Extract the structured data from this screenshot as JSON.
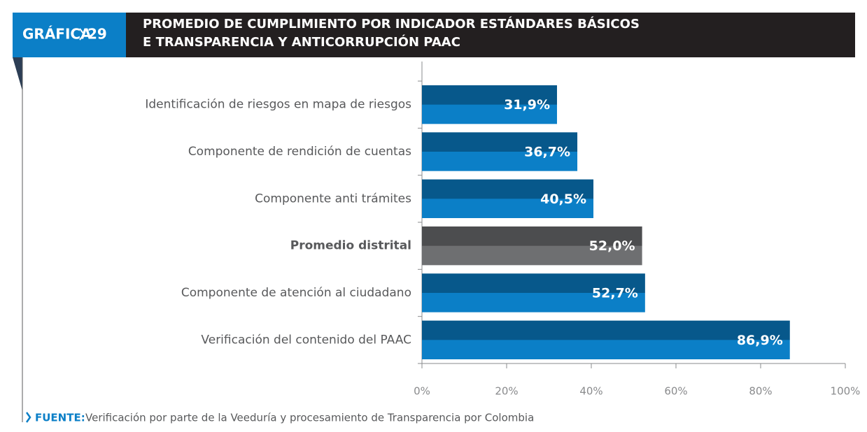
{
  "chart_data": {
    "type": "hbar",
    "tab_label": "GRÁFICA",
    "number": "29",
    "title_lines": [
      "PROMEDIO DE CUMPLIMIENTO POR INDICADOR ESTÁNDARES BÁSICOS",
      "E TRANSPARENCIA Y ANTICORRUPCIÓN PAAC"
    ],
    "categories": [
      "Identificación de riesgos en mapa de riesgos",
      "Componente de rendición de cuentas",
      "Componente anti trámites",
      "Promedio distrital",
      "Componente de atención al ciudadano",
      "Verificación del contenido del PAAC"
    ],
    "values": [
      31.9,
      36.7,
      40.5,
      52.0,
      52.7,
      86.9
    ],
    "value_labels": [
      "31,9%",
      "36,7%",
      "40,5%",
      "52,0%",
      "52,7%",
      "86,9%"
    ],
    "colors": [
      "#0b7fc7",
      "#0b7fc7",
      "#0b7fc7",
      "#6e6f71",
      "#0b7fc7",
      "#0b7fc7"
    ],
    "highlight": 3,
    "xlim": [
      0,
      100
    ],
    "xticks": [
      {
        "value": 0,
        "label": "0%"
      },
      {
        "value": 20,
        "label": "20%"
      },
      {
        "value": 40,
        "label": "40%"
      },
      {
        "value": 60,
        "label": "60%"
      },
      {
        "value": 80,
        "label": "80%"
      },
      {
        "value": 100,
        "label": "100%"
      }
    ],
    "source_label": "FUENTE:",
    "source": "Verificación por parte de la Veeduría y procesamiento de Transparencia por Colombia"
  }
}
